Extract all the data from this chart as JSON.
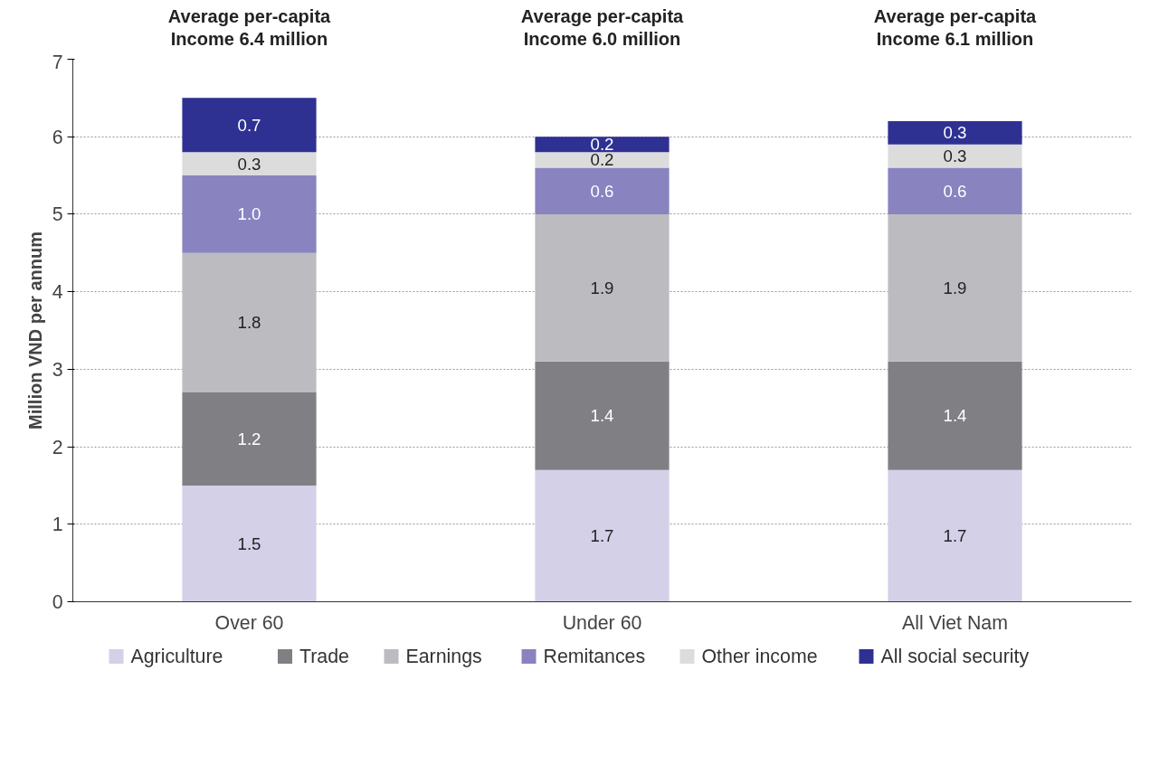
{
  "chart_data": {
    "type": "bar",
    "stacked": true,
    "ylabel": "Million VND per annum",
    "categories": [
      "Over 60",
      "Under 60",
      "All Viet Nam"
    ],
    "series": [
      {
        "name": "Agriculture",
        "color": "#d3d0e8",
        "values": [
          1.5,
          1.7,
          1.7
        ],
        "value_labels": [
          "1.5",
          "1.7",
          "1.7"
        ]
      },
      {
        "name": "Trade",
        "color": "#808084",
        "values": [
          1.2,
          1.4,
          1.4
        ],
        "value_labels": [
          "1.2",
          "1.4",
          "1.4"
        ]
      },
      {
        "name": "Earnings",
        "color": "#bcbcc0",
        "values": [
          1.8,
          1.9,
          1.9
        ],
        "value_labels": [
          "1.8",
          "1.9",
          "1.9"
        ]
      },
      {
        "name": "Remitances",
        "color": "#8983c0",
        "values": [
          1.0,
          0.6,
          0.6
        ],
        "value_labels": [
          "1.0",
          "0.6",
          "0.6"
        ]
      },
      {
        "name": "Other income",
        "color": "#dcdcdc",
        "values": [
          0.3,
          0.2,
          0.3
        ],
        "value_labels": [
          "0.3",
          "0.2",
          "0.3"
        ]
      },
      {
        "name": "All social security",
        "color": "#2e3192",
        "values": [
          0.7,
          0.2,
          0.3
        ],
        "value_labels": [
          "0.7",
          "0.2",
          "0.3"
        ]
      }
    ],
    "ylim": [
      0,
      7
    ],
    "yticks": [
      0,
      1,
      2,
      3,
      4,
      5,
      6,
      7
    ],
    "grid": "y",
    "legend": "bottom",
    "annotations": [
      "Average per-capita\nIncome 6.4 million",
      "Average per-capita\nIncome 6.0 million",
      "Average per-capita\nIncome 6.1 million"
    ]
  }
}
